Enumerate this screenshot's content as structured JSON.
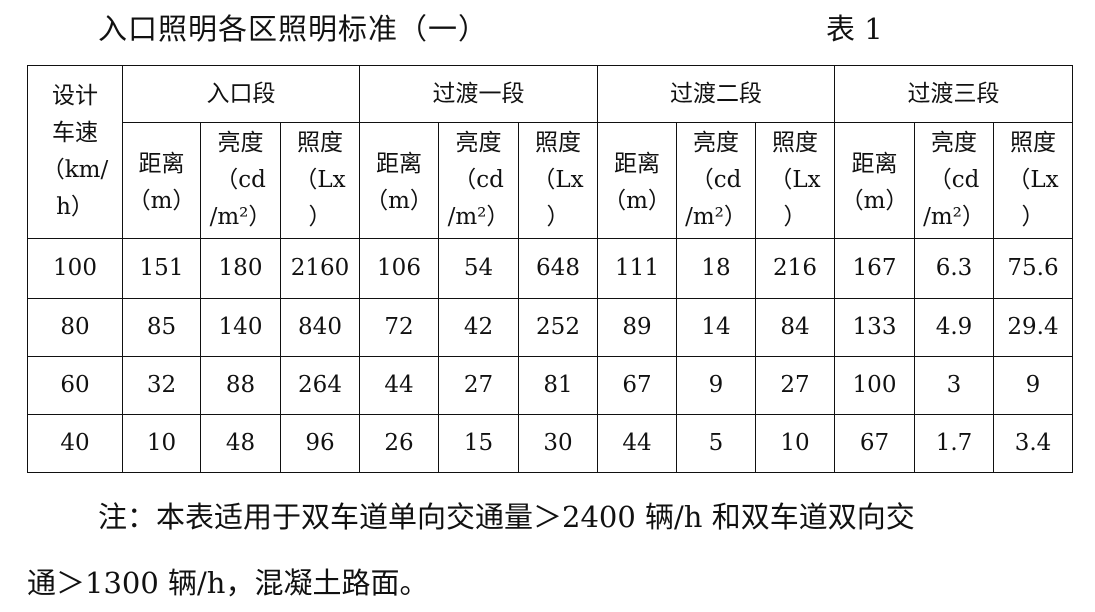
{
  "title": "入口照明各区照明标准（一）",
  "table_number": "表 1",
  "table": {
    "first_header": [
      "设计",
      "车速",
      "（km/",
      "h）"
    ],
    "groups": [
      "入口段",
      "过渡一段",
      "过渡二段",
      "过渡三段"
    ],
    "sub_headers": [
      [
        "距离",
        "（m）"
      ],
      [
        "亮度",
        "（cd",
        "/m²）"
      ],
      [
        "照度",
        "（Lx",
        "）"
      ]
    ],
    "rows": [
      [
        "100",
        "151",
        "180",
        "2160",
        "106",
        "54",
        "648",
        "111",
        "18",
        "216",
        "167",
        "6.3",
        "75.6"
      ],
      [
        "80",
        "85",
        "140",
        "840",
        "72",
        "42",
        "252",
        "89",
        "14",
        "84",
        "133",
        "4.9",
        "29.4"
      ],
      [
        "60",
        "32",
        "88",
        "264",
        "44",
        "27",
        "81",
        "67",
        "9",
        "27",
        "100",
        "3",
        "9"
      ],
      [
        "40",
        "10",
        "48",
        "96",
        "26",
        "15",
        "30",
        "44",
        "5",
        "10",
        "67",
        "1.7",
        "3.4"
      ]
    ]
  },
  "note": {
    "line1": "注：本表适用于双车道单向交通量＞2400 辆/h 和双车道双向交",
    "line2": "通＞1300 辆/h，混凝土路面。"
  }
}
